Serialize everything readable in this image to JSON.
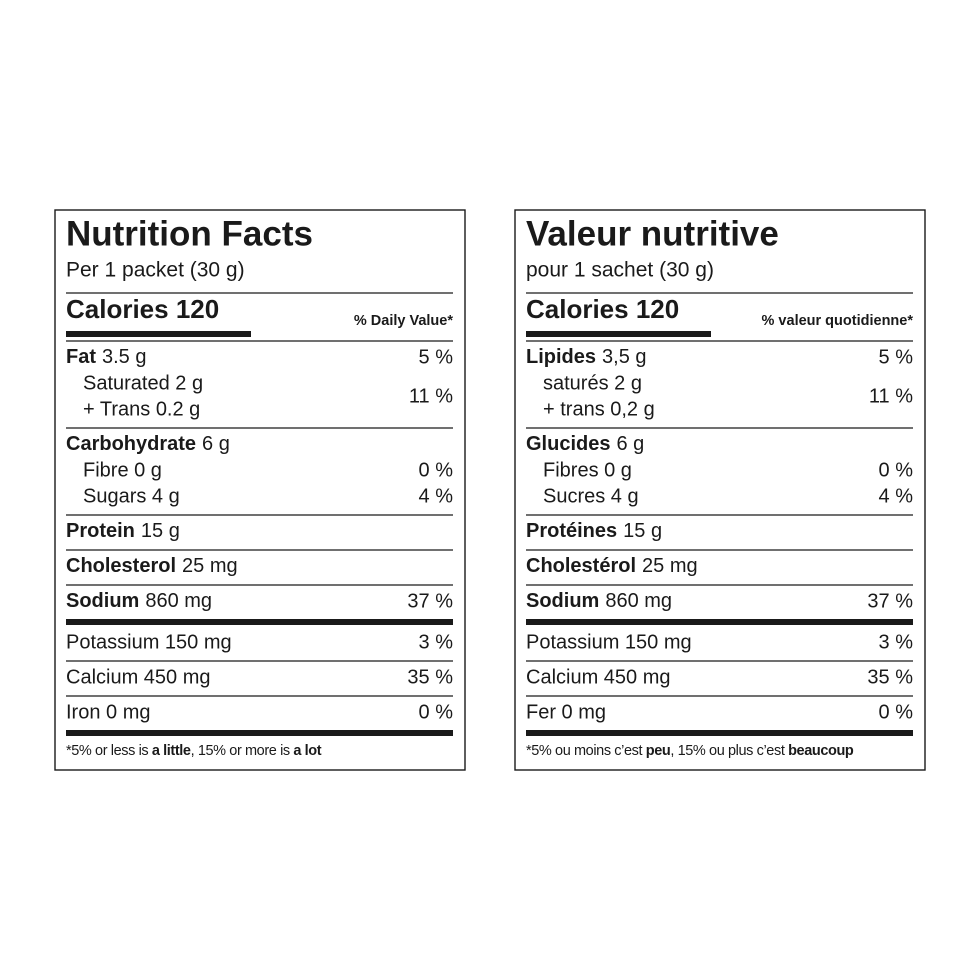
{
  "labels": [
    {
      "title": "Nutrition Facts",
      "serving": "Per 1 packet (30 g)",
      "calories": "Calories 120",
      "dv_header": "% Daily Value*",
      "nutrients": [
        {
          "name": "Fat",
          "amount": "3.5 g",
          "dv": "5 %",
          "sub": [
            {
              "text": "Saturated 2 g"
            },
            {
              "text": "+ Trans 0.2 g"
            }
          ],
          "sub_dv": "11 %"
        },
        {
          "name": "Carbohydrate",
          "amount": "6 g",
          "sub": [
            {
              "text": "Fibre 0 g",
              "dv": "0 %"
            },
            {
              "text": "Sugars 4 g",
              "dv": "4 %"
            }
          ]
        },
        {
          "name": "Protein",
          "amount": "15 g"
        },
        {
          "name": "Cholesterol",
          "amount": "25 mg"
        },
        {
          "name": "Sodium",
          "amount": "860 mg",
          "dv": "37 %"
        }
      ],
      "minerals": [
        {
          "text": "Potassium 150 mg",
          "dv": "3 %"
        },
        {
          "text": "Calcium 450 mg",
          "dv": "35 %"
        },
        {
          "text": "Iron 0 mg",
          "dv": "0 %"
        }
      ],
      "footnote": [
        "*5% or less is ",
        "a little",
        ", 15% or more is ",
        "a lot"
      ]
    },
    {
      "title": "Valeur nutritive",
      "serving": "pour 1 sachet (30 g)",
      "calories": "Calories 120",
      "dv_header": "% valeur quotidienne*",
      "nutrients": [
        {
          "name": "Lipides",
          "amount": "3,5 g",
          "dv": "5 %",
          "sub": [
            {
              "text": "saturés 2 g"
            },
            {
              "text": "+ trans 0,2 g"
            }
          ],
          "sub_dv": "11 %"
        },
        {
          "name": "Glucides",
          "amount": "6 g",
          "sub": [
            {
              "text": "Fibres 0 g",
              "dv": "0 %"
            },
            {
              "text": "Sucres 4 g",
              "dv": "4 %"
            }
          ]
        },
        {
          "name": "Protéines",
          "amount": "15 g"
        },
        {
          "name": "Cholestérol",
          "amount": "25 mg"
        },
        {
          "name": "Sodium",
          "amount": "860 mg",
          "dv": "37 %"
        }
      ],
      "minerals": [
        {
          "text": "Potassium 150 mg",
          "dv": "3 %"
        },
        {
          "text": "Calcium 450 mg",
          "dv": "35 %"
        },
        {
          "text": "Fer 0 mg",
          "dv": "0 %"
        }
      ],
      "footnote": [
        "*5% ou moins c’est ",
        "peu",
        ", 15% ou plus c’est ",
        "beaucoup"
      ]
    }
  ]
}
